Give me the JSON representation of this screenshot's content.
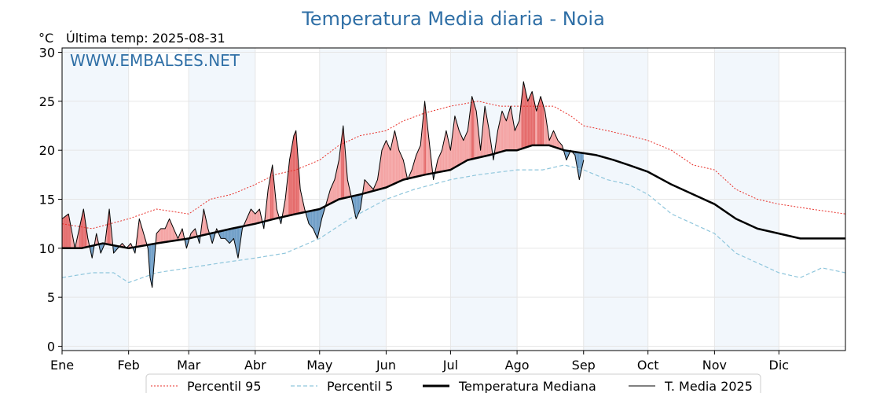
{
  "header": {
    "title": "Temperatura Media diaria - Noia",
    "unit": "°C",
    "last_temp_text": "Última temp: 2025-08-31",
    "watermark": "WWW.EMBALSES.NET"
  },
  "colors": {
    "title": "#2f6fa6",
    "p95": "#e8302a",
    "p5": "#8fc6dc",
    "median": "#000000",
    "current": "#000000",
    "above_fill": "#f4a3a3",
    "above_fill_strong": "#e56b6b",
    "below_fill": "#6f9ec7",
    "band": "#f2f7fc",
    "grid": "#e6e6e6"
  },
  "chart_data": {
    "type": "line",
    "title": "Temperatura Media diaria - Noia",
    "ylabel": "°C",
    "ylim": [
      0,
      30
    ],
    "yticks": [
      "0",
      "5",
      "10",
      "15",
      "20",
      "25",
      "30"
    ],
    "month_labels": [
      "Ene",
      "Feb",
      "Mar",
      "Abr",
      "May",
      "Jun",
      "Jul",
      "Ago",
      "Sep",
      "Oct",
      "Nov",
      "Dic"
    ],
    "month_start_days": [
      1,
      32,
      60,
      91,
      121,
      152,
      182,
      213,
      244,
      274,
      305,
      335
    ],
    "xlim_days": [
      1,
      366
    ],
    "grid": true,
    "legend_position": "bottom",
    "legend": [
      "Percentil 95",
      "Percentil 5",
      "Temperatura Mediana",
      "T. Media 2025"
    ],
    "series": [
      {
        "name": "Percentil 95",
        "style": "dotted",
        "points": [
          [
            1,
            12.5
          ],
          [
            15,
            12
          ],
          [
            32,
            13
          ],
          [
            45,
            14
          ],
          [
            60,
            13.5
          ],
          [
            70,
            15
          ],
          [
            80,
            15.5
          ],
          [
            91,
            16.5
          ],
          [
            100,
            17.5
          ],
          [
            110,
            18
          ],
          [
            121,
            19
          ],
          [
            130,
            20.5
          ],
          [
            140,
            21.5
          ],
          [
            152,
            22
          ],
          [
            160,
            23
          ],
          [
            170,
            23.8
          ],
          [
            182,
            24.5
          ],
          [
            195,
            25
          ],
          [
            205,
            24.5
          ],
          [
            213,
            24.5
          ],
          [
            222,
            24.5
          ],
          [
            230,
            24.5
          ],
          [
            238,
            23.5
          ],
          [
            244,
            22.5
          ],
          [
            255,
            22
          ],
          [
            265,
            21.5
          ],
          [
            274,
            21
          ],
          [
            285,
            20
          ],
          [
            295,
            18.5
          ],
          [
            305,
            18
          ],
          [
            315,
            16
          ],
          [
            325,
            15
          ],
          [
            335,
            14.5
          ],
          [
            350,
            14
          ],
          [
            366,
            13.5
          ]
        ]
      },
      {
        "name": "Percentil 5",
        "style": "dashed",
        "points": [
          [
            1,
            7
          ],
          [
            15,
            7.5
          ],
          [
            25,
            7.5
          ],
          [
            32,
            6.5
          ],
          [
            45,
            7.5
          ],
          [
            60,
            8
          ],
          [
            75,
            8.5
          ],
          [
            91,
            9
          ],
          [
            105,
            9.5
          ],
          [
            121,
            11
          ],
          [
            135,
            13
          ],
          [
            152,
            15
          ],
          [
            165,
            16
          ],
          [
            182,
            17
          ],
          [
            195,
            17.5
          ],
          [
            213,
            18
          ],
          [
            225,
            18
          ],
          [
            235,
            18.5
          ],
          [
            244,
            18
          ],
          [
            255,
            17
          ],
          [
            265,
            16.5
          ],
          [
            274,
            15.5
          ],
          [
            285,
            13.5
          ],
          [
            295,
            12.5
          ],
          [
            305,
            11.5
          ],
          [
            315,
            9.5
          ],
          [
            325,
            8.5
          ],
          [
            335,
            7.5
          ],
          [
            345,
            7
          ],
          [
            355,
            8
          ],
          [
            366,
            7.5
          ]
        ]
      },
      {
        "name": "Temperatura Mediana",
        "style": "solid-thick",
        "points": [
          [
            1,
            10
          ],
          [
            10,
            10
          ],
          [
            20,
            10.5
          ],
          [
            32,
            10
          ],
          [
            45,
            10.5
          ],
          [
            60,
            11
          ],
          [
            70,
            11.5
          ],
          [
            80,
            12
          ],
          [
            91,
            12.5
          ],
          [
            100,
            13
          ],
          [
            110,
            13.5
          ],
          [
            121,
            14
          ],
          [
            130,
            15
          ],
          [
            140,
            15.5
          ],
          [
            152,
            16.2
          ],
          [
            160,
            17
          ],
          [
            170,
            17.5
          ],
          [
            182,
            18
          ],
          [
            190,
            19
          ],
          [
            200,
            19.5
          ],
          [
            208,
            20
          ],
          [
            213,
            20
          ],
          [
            220,
            20.5
          ],
          [
            228,
            20.5
          ],
          [
            235,
            20
          ],
          [
            244,
            19.7
          ],
          [
            250,
            19.5
          ],
          [
            258,
            19
          ],
          [
            265,
            18.5
          ],
          [
            274,
            17.8
          ],
          [
            285,
            16.5
          ],
          [
            295,
            15.5
          ],
          [
            305,
            14.5
          ],
          [
            315,
            13
          ],
          [
            325,
            12
          ],
          [
            335,
            11.5
          ],
          [
            345,
            11
          ],
          [
            355,
            11
          ],
          [
            366,
            11
          ]
        ]
      },
      {
        "name": "T. Media 2025",
        "style": "solid-thin",
        "points": [
          [
            1,
            13
          ],
          [
            4,
            13.5
          ],
          [
            7,
            10
          ],
          [
            9,
            12
          ],
          [
            11,
            14
          ],
          [
            13,
            11
          ],
          [
            15,
            9
          ],
          [
            17,
            11.5
          ],
          [
            19,
            9.5
          ],
          [
            21,
            10.5
          ],
          [
            23,
            14
          ],
          [
            25,
            9.5
          ],
          [
            27,
            10
          ],
          [
            29,
            10.5
          ],
          [
            31,
            10
          ],
          [
            33,
            10.5
          ],
          [
            35,
            9.5
          ],
          [
            37,
            13
          ],
          [
            39,
            11.5
          ],
          [
            41,
            10
          ],
          [
            42,
            7
          ],
          [
            43,
            6
          ],
          [
            45,
            11.5
          ],
          [
            47,
            12
          ],
          [
            49,
            12
          ],
          [
            51,
            13
          ],
          [
            53,
            12
          ],
          [
            55,
            11
          ],
          [
            57,
            12
          ],
          [
            59,
            10
          ],
          [
            61,
            11.5
          ],
          [
            63,
            12
          ],
          [
            65,
            10.5
          ],
          [
            67,
            14
          ],
          [
            69,
            12
          ],
          [
            71,
            10.5
          ],
          [
            73,
            12
          ],
          [
            75,
            11
          ],
          [
            77,
            11
          ],
          [
            79,
            10.5
          ],
          [
            81,
            11
          ],
          [
            83,
            9
          ],
          [
            85,
            12
          ],
          [
            87,
            13
          ],
          [
            89,
            14
          ],
          [
            91,
            13.5
          ],
          [
            93,
            14
          ],
          [
            95,
            12
          ],
          [
            97,
            16
          ],
          [
            99,
            18.5
          ],
          [
            101,
            14
          ],
          [
            103,
            12.5
          ],
          [
            105,
            15
          ],
          [
            107,
            19
          ],
          [
            109,
            21.5
          ],
          [
            110,
            22
          ],
          [
            112,
            16
          ],
          [
            114,
            14
          ],
          [
            116,
            12.5
          ],
          [
            118,
            12
          ],
          [
            120,
            11
          ],
          [
            122,
            13
          ],
          [
            124,
            14.5
          ],
          [
            126,
            16
          ],
          [
            128,
            17
          ],
          [
            130,
            19
          ],
          [
            132,
            22.5
          ],
          [
            134,
            17
          ],
          [
            136,
            15
          ],
          [
            138,
            13
          ],
          [
            140,
            14
          ],
          [
            142,
            17
          ],
          [
            144,
            16.5
          ],
          [
            146,
            16
          ],
          [
            148,
            17
          ],
          [
            150,
            20
          ],
          [
            152,
            21
          ],
          [
            154,
            20
          ],
          [
            156,
            22
          ],
          [
            158,
            20
          ],
          [
            160,
            19
          ],
          [
            162,
            17
          ],
          [
            164,
            18
          ],
          [
            166,
            19.5
          ],
          [
            168,
            20.5
          ],
          [
            170,
            25
          ],
          [
            172,
            21
          ],
          [
            174,
            17
          ],
          [
            176,
            19
          ],
          [
            178,
            20
          ],
          [
            180,
            22
          ],
          [
            182,
            20
          ],
          [
            184,
            23.5
          ],
          [
            186,
            22
          ],
          [
            188,
            21
          ],
          [
            190,
            22
          ],
          [
            192,
            25.5
          ],
          [
            194,
            24
          ],
          [
            196,
            20
          ],
          [
            198,
            24.5
          ],
          [
            200,
            22
          ],
          [
            202,
            19
          ],
          [
            204,
            22
          ],
          [
            206,
            24
          ],
          [
            208,
            23
          ],
          [
            210,
            24.5
          ],
          [
            212,
            22
          ],
          [
            214,
            23
          ],
          [
            216,
            27
          ],
          [
            218,
            25
          ],
          [
            220,
            26
          ],
          [
            222,
            24
          ],
          [
            224,
            25.5
          ],
          [
            226,
            24
          ],
          [
            228,
            21
          ],
          [
            230,
            22
          ],
          [
            232,
            21
          ],
          [
            234,
            20.5
          ],
          [
            236,
            19
          ],
          [
            238,
            20
          ],
          [
            240,
            19.5
          ],
          [
            242,
            17
          ],
          [
            244,
            19
          ]
        ]
      }
    ]
  }
}
